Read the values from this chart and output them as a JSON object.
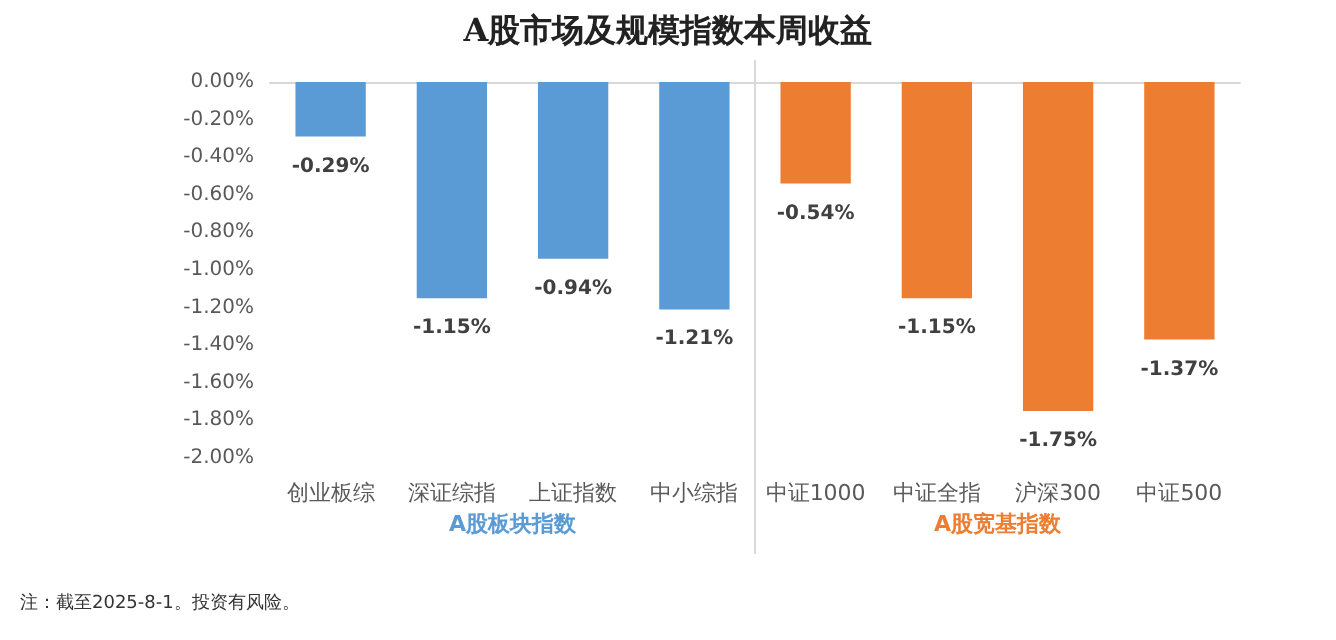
{
  "chart_data": {
    "type": "bar",
    "title": "A股市场及规模指数本周收益",
    "categories": [
      "创业板综",
      "深证综指",
      "上证指数",
      "中小综指",
      "中证1000",
      "中证全指",
      "沪深300",
      "中证500"
    ],
    "values": [
      -0.29,
      -1.15,
      -0.94,
      -1.21,
      -0.54,
      -1.15,
      -1.75,
      -1.37
    ],
    "colors": [
      "#5b9bd5",
      "#5b9bd5",
      "#5b9bd5",
      "#5b9bd5",
      "#ed7d31",
      "#ed7d31",
      "#ed7d31",
      "#ed7d31"
    ],
    "value_labels": [
      "-0.29%",
      "-1.15%",
      "-0.94%",
      "-1.21%",
      "-0.54%",
      "-1.15%",
      "-1.75%",
      "-1.37%"
    ],
    "ylim": [
      -2,
      0
    ],
    "yticks": [
      {
        "value": 0,
        "label": "0.00%"
      },
      {
        "value": -0.2,
        "label": "-0.20%"
      },
      {
        "value": -0.4,
        "label": "-0.40%"
      },
      {
        "value": -0.6,
        "label": "-0.60%"
      },
      {
        "value": -0.8,
        "label": "-0.80%"
      },
      {
        "value": -1,
        "label": "-1.00%"
      },
      {
        "value": -1.2,
        "label": "-1.20%"
      },
      {
        "value": -1.4,
        "label": "-1.40%"
      },
      {
        "value": -1.6,
        "label": "-1.60%"
      },
      {
        "value": -1.8,
        "label": "-1.80%"
      },
      {
        "value": -2,
        "label": "-2.00%"
      }
    ],
    "grid": false,
    "annotations": [
      "A股板块指数",
      "A股宽基指数",
      "注：截至2025-8-1。投资有风险。"
    ]
  }
}
